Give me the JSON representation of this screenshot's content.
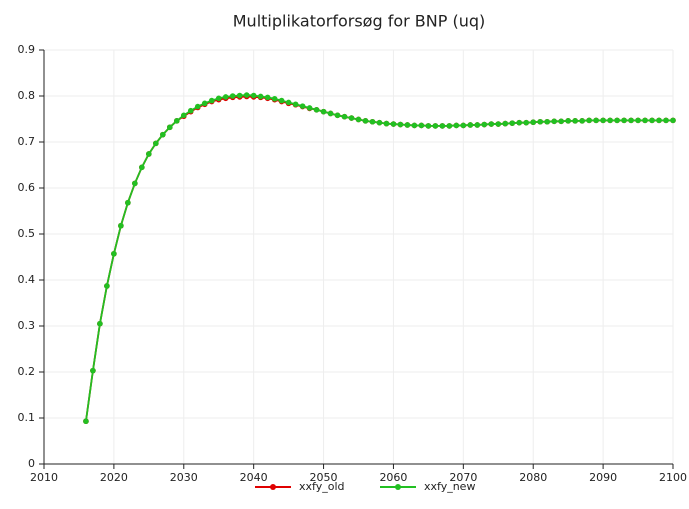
{
  "chart_data": {
    "type": "line",
    "title": "Multiplikatorforsøg for BNP (uq)",
    "x": [
      2016,
      2017,
      2018,
      2019,
      2020,
      2021,
      2022,
      2023,
      2024,
      2025,
      2026,
      2027,
      2028,
      2029,
      2030,
      2031,
      2032,
      2033,
      2034,
      2035,
      2036,
      2037,
      2038,
      2039,
      2040,
      2041,
      2042,
      2043,
      2044,
      2045,
      2046,
      2047,
      2048,
      2049,
      2050,
      2051,
      2052,
      2053,
      2054,
      2055,
      2056,
      2057,
      2058,
      2059,
      2060,
      2061,
      2062,
      2063,
      2064,
      2065,
      2066,
      2067,
      2068,
      2069,
      2070,
      2071,
      2072,
      2073,
      2074,
      2075,
      2076,
      2077,
      2078,
      2079,
      2080,
      2081,
      2082,
      2083,
      2084,
      2085,
      2086,
      2087,
      2088,
      2089,
      2090,
      2091,
      2092,
      2093,
      2094,
      2095,
      2096,
      2097,
      2098,
      2099,
      2100
    ],
    "series": [
      {
        "name": "xxfy_old",
        "color": "#e00000",
        "values": [
          0.093,
          0.203,
          0.305,
          0.387,
          0.457,
          0.518,
          0.568,
          0.61,
          0.645,
          0.674,
          0.697,
          0.716,
          0.732,
          0.746,
          0.756,
          0.766,
          0.775,
          0.782,
          0.788,
          0.792,
          0.795,
          0.797,
          0.798,
          0.799,
          0.798,
          0.797,
          0.795,
          0.792,
          0.788,
          0.784,
          0.781,
          0.777,
          0.773,
          0.77,
          0.766,
          0.762,
          0.758,
          0.755,
          0.752,
          0.749,
          0.746,
          0.744,
          0.742,
          0.74,
          0.739,
          0.738,
          0.737,
          0.736,
          0.736,
          0.735,
          0.735,
          0.735,
          0.735,
          0.736,
          0.736,
          0.737,
          0.737,
          0.738,
          0.739,
          0.739,
          0.74,
          0.741,
          0.742,
          0.742,
          0.743,
          0.744,
          0.744,
          0.745,
          0.745,
          0.746,
          0.746,
          0.746,
          0.747,
          0.747,
          0.747,
          0.747,
          0.747,
          0.747,
          0.747,
          0.747,
          0.747,
          0.747,
          0.747,
          0.747,
          0.747
        ]
      },
      {
        "name": "xxfy_new",
        "color": "#22c022",
        "values": [
          0.093,
          0.203,
          0.305,
          0.387,
          0.457,
          0.518,
          0.568,
          0.61,
          0.645,
          0.674,
          0.697,
          0.716,
          0.732,
          0.746,
          0.758,
          0.768,
          0.777,
          0.784,
          0.79,
          0.795,
          0.798,
          0.8,
          0.801,
          0.802,
          0.801,
          0.799,
          0.797,
          0.794,
          0.79,
          0.786,
          0.782,
          0.778,
          0.774,
          0.77,
          0.766,
          0.762,
          0.758,
          0.755,
          0.752,
          0.749,
          0.746,
          0.744,
          0.742,
          0.74,
          0.739,
          0.738,
          0.737,
          0.736,
          0.736,
          0.735,
          0.735,
          0.735,
          0.735,
          0.736,
          0.736,
          0.737,
          0.737,
          0.738,
          0.739,
          0.739,
          0.74,
          0.741,
          0.742,
          0.742,
          0.743,
          0.744,
          0.744,
          0.745,
          0.745,
          0.746,
          0.746,
          0.746,
          0.747,
          0.747,
          0.747,
          0.747,
          0.747,
          0.747,
          0.747,
          0.747,
          0.747,
          0.747,
          0.747,
          0.747,
          0.747
        ]
      }
    ],
    "xlim": [
      2010,
      2100
    ],
    "xticks": [
      2010,
      2020,
      2030,
      2040,
      2050,
      2060,
      2070,
      2080,
      2090,
      2100
    ],
    "ylim": [
      0,
      0.9
    ],
    "yticks": [
      0,
      0.1,
      0.2,
      0.3,
      0.4,
      0.5,
      0.6,
      0.7,
      0.8,
      0.9
    ],
    "grid": true,
    "legend": "bottom"
  }
}
